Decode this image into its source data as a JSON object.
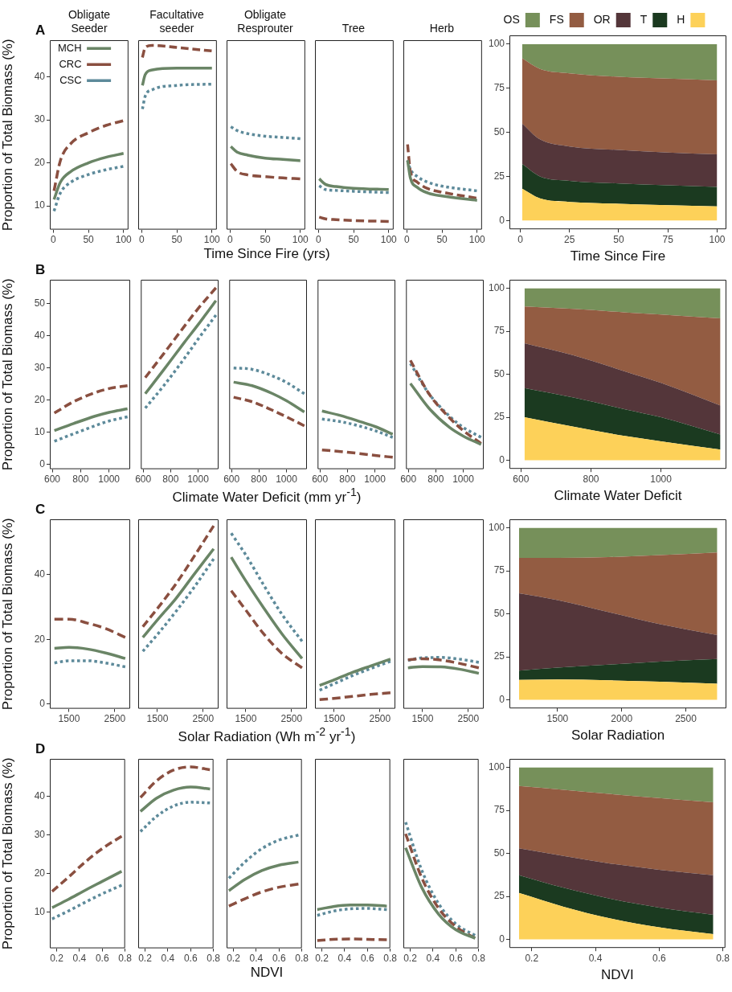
{
  "chart_data": [
    {
      "type": "line",
      "title": "Obligate Seeder",
      "ylabel": "Proportion of Total Biomass (%)",
      "annotations": [
        "A"
      ],
      "legend": "top left",
      "x": [
        1,
        10,
        25,
        50,
        75,
        100
      ],
      "xlim": [
        -5,
        107
      ],
      "xticks": [
        0,
        50,
        100
      ],
      "ylim": [
        4.5,
        48.5
      ],
      "yticks": [
        10,
        20,
        30,
        40
      ],
      "series": [
        {
          "name": "MCH",
          "color": "#6a8566",
          "line_style": "solid",
          "values": [
            11.5,
            15.5,
            18,
            20,
            21.3,
            22.2
          ]
        },
        {
          "name": "CRC",
          "color": "#8a4f40",
          "line_style": "dashed",
          "values": [
            13.5,
            20.5,
            24.5,
            27,
            28.7,
            29.8
          ]
        },
        {
          "name": "CSC",
          "color": "#5d8a9a",
          "line_style": "dotted",
          "values": [
            8.8,
            13,
            15.5,
            17.3,
            18.4,
            19.2
          ]
        }
      ]
    },
    {
      "type": "line",
      "title": "Facultative seeder",
      "tick_labels": "x",
      "x": [
        1,
        5,
        15,
        50,
        100
      ],
      "xlim": [
        -5,
        107
      ],
      "xticks": [
        0,
        50,
        100
      ],
      "ylim": [
        4.5,
        48.5
      ],
      "series": [
        {
          "color": "#6a8566",
          "line_style": "solid",
          "values": [
            38,
            40.5,
            41.6,
            42,
            42
          ]
        },
        {
          "color": "#8a4f40",
          "line_style": "dashed",
          "values": [
            44.5,
            46.8,
            47.3,
            46.8,
            46
          ]
        },
        {
          "color": "#5d8a9a",
          "line_style": "dotted",
          "values": [
            32.5,
            35.5,
            37,
            38,
            38.3
          ]
        }
      ]
    },
    {
      "type": "line",
      "title": "Obligate Resprouter",
      "xlabel": "Time Since Fire (yrs)",
      "tick_labels": "x",
      "x": [
        1,
        10,
        25,
        50,
        75,
        100
      ],
      "xlim": [
        -5,
        107
      ],
      "xticks": [
        0,
        50,
        100
      ],
      "ylim": [
        4.5,
        48.5
      ],
      "series": [
        {
          "color": "#6a8566",
          "line_style": "solid",
          "values": [
            23.8,
            22.5,
            21.8,
            21.1,
            20.8,
            20.5
          ]
        },
        {
          "color": "#8a4f40",
          "line_style": "dashed",
          "values": [
            19.8,
            18,
            17.2,
            16.8,
            16.5,
            16.3
          ]
        },
        {
          "color": "#5d8a9a",
          "line_style": "dotted",
          "values": [
            28.4,
            27.5,
            26.8,
            26.2,
            25.9,
            25.6
          ]
        }
      ]
    },
    {
      "type": "line",
      "title": "Tree",
      "tick_labels": "x",
      "x": [
        1,
        10,
        25,
        50,
        100
      ],
      "xlim": [
        -5,
        107
      ],
      "xticks": [
        0,
        50,
        100
      ],
      "ylim": [
        4.5,
        48.5
      ],
      "series": [
        {
          "color": "#6a8566",
          "line_style": "solid",
          "values": [
            16.3,
            15,
            14.5,
            14.1,
            13.8
          ]
        },
        {
          "color": "#8a4f40",
          "line_style": "dashed",
          "values": [
            7.4,
            7,
            6.8,
            6.6,
            6.4
          ]
        },
        {
          "color": "#5d8a9a",
          "line_style": "dotted",
          "values": [
            14.7,
            13.8,
            13.6,
            13.4,
            13.1
          ]
        }
      ]
    },
    {
      "type": "line",
      "title": "Herb",
      "tick_labels": "x",
      "x": [
        1,
        5,
        15,
        30,
        50,
        100
      ],
      "xlim": [
        -5,
        107
      ],
      "xticks": [
        0,
        50,
        100
      ],
      "ylim": [
        4.5,
        48.5
      ],
      "series": [
        {
          "color": "#6a8566",
          "line_style": "solid",
          "values": [
            20.6,
            16.5,
            14.3,
            13,
            12.3,
            11.3
          ]
        },
        {
          "color": "#8a4f40",
          "line_style": "dashed",
          "values": [
            24.3,
            18,
            15.5,
            14,
            13.2,
            11.8
          ]
        },
        {
          "color": "#5d8a9a",
          "line_style": "dotted",
          "values": [
            20.6,
            18.5,
            16.8,
            15.5,
            14.6,
            13.5
          ]
        }
      ]
    },
    {
      "type": "area",
      "stacked": true,
      "legend": "top",
      "xlabel": "Time Since Fire",
      "x": [
        1,
        10,
        25,
        50,
        75,
        100
      ],
      "xlim": [
        -5.5,
        104.7
      ],
      "xticks": [
        0,
        25,
        50,
        75,
        100
      ],
      "ylim": [
        -5,
        105
      ],
      "yticks": [
        0,
        25,
        50,
        75,
        100
      ],
      "series": [
        {
          "name": "H",
          "color": "#fdd159",
          "values": [
            18,
            12.5,
            10.5,
            9.5,
            8.7,
            8
          ]
        },
        {
          "name": "T",
          "color": "#1b3a20",
          "values": [
            14,
            12.5,
            12,
            11.5,
            11.3,
            11
          ]
        },
        {
          "name": "OR",
          "color": "#54363a",
          "values": [
            23,
            21,
            19.5,
            19,
            18.5,
            18.5
          ]
        },
        {
          "name": "FS",
          "color": "#935c42",
          "values": [
            37,
            40,
            41.5,
            41.5,
            42,
            42
          ]
        },
        {
          "name": "OS",
          "color": "#76905a",
          "values": [
            8,
            14,
            16.5,
            18.5,
            19.5,
            20.5
          ]
        }
      ]
    },
    {
      "type": "line",
      "ylabel": "Proportion of Total Biomass (%)",
      "annotations": [
        "B"
      ],
      "x": [
        615,
        750,
        900,
        1000,
        1130
      ],
      "xlim": [
        583,
        1149
      ],
      "xticks": [
        600,
        800,
        1000
      ],
      "ylim": [
        -1.5,
        57.5
      ],
      "yticks": [
        0,
        10,
        20,
        30,
        40,
        50
      ],
      "series": [
        {
          "color": "#6a8566",
          "line_style": "solid",
          "values": [
            10.5,
            12.7,
            15,
            16.2,
            17.3
          ]
        },
        {
          "color": "#8a4f40",
          "line_style": "dashed",
          "values": [
            16,
            19.5,
            22.3,
            23.6,
            24.5
          ]
        },
        {
          "color": "#5d8a9a",
          "line_style": "dotted",
          "values": [
            7.2,
            9.5,
            12,
            13.5,
            14.8
          ]
        }
      ]
    },
    {
      "type": "line",
      "tick_labels": "x",
      "x": [
        615,
        750,
        900,
        1000,
        1130
      ],
      "xlim": [
        583,
        1149
      ],
      "xticks": [
        600,
        800,
        1000
      ],
      "ylim": [
        -1.5,
        57.5
      ],
      "series": [
        {
          "color": "#6a8566",
          "line_style": "solid",
          "values": [
            22,
            29.5,
            38,
            43.5,
            51
          ]
        },
        {
          "color": "#8a4f40",
          "line_style": "dashed",
          "values": [
            27,
            34.5,
            43,
            48.5,
            55
          ]
        },
        {
          "color": "#5d8a9a",
          "line_style": "dotted",
          "values": [
            17.5,
            24.5,
            33,
            39,
            46.5
          ]
        }
      ]
    },
    {
      "type": "line",
      "xlabel": "Climate Water Deficit (mm yr$^{-1}$)",
      "tick_labels": "x",
      "x": [
        615,
        750,
        900,
        1000,
        1130
      ],
      "xlim": [
        583,
        1149
      ],
      "xticks": [
        600,
        800,
        1000
      ],
      "ylim": [
        -1.5,
        57.5
      ],
      "series": [
        {
          "color": "#6a8566",
          "line_style": "solid",
          "values": [
            25.6,
            24.5,
            22,
            19.8,
            16.3
          ]
        },
        {
          "color": "#8a4f40",
          "line_style": "dashed",
          "values": [
            20.9,
            19.5,
            16.8,
            14.8,
            12
          ]
        },
        {
          "color": "#5d8a9a",
          "line_style": "dotted",
          "values": [
            30,
            29.6,
            27.5,
            25.5,
            22
          ]
        }
      ]
    },
    {
      "type": "line",
      "tick_labels": "x",
      "x": [
        615,
        750,
        900,
        1000,
        1130
      ],
      "xlim": [
        583,
        1149
      ],
      "xticks": [
        600,
        800,
        1000
      ],
      "ylim": [
        -1.5,
        57.5
      ],
      "series": [
        {
          "color": "#6a8566",
          "line_style": "solid",
          "values": [
            16.6,
            15.2,
            13.2,
            11.8,
            9.4
          ]
        },
        {
          "color": "#8a4f40",
          "line_style": "dashed",
          "values": [
            4.5,
            4,
            3.3,
            2.8,
            2.2
          ]
        },
        {
          "color": "#5d8a9a",
          "line_style": "dotted",
          "values": [
            14.1,
            13.3,
            11.8,
            10.5,
            8.4
          ]
        }
      ]
    },
    {
      "type": "line",
      "tick_labels": "x",
      "x": [
        615,
        750,
        900,
        1000,
        1130
      ],
      "xlim": [
        583,
        1149
      ],
      "xticks": [
        600,
        800,
        1000
      ],
      "ylim": [
        -1.5,
        57.5
      ],
      "series": [
        {
          "color": "#6a8566",
          "line_style": "solid",
          "values": [
            25.2,
            17.5,
            11.5,
            8.8,
            6.2
          ]
        },
        {
          "color": "#8a4f40",
          "line_style": "dashed",
          "values": [
            32.4,
            22,
            14.5,
            10.5,
            6.5
          ]
        },
        {
          "color": "#5d8a9a",
          "line_style": "dotted",
          "values": [
            31.4,
            22,
            15,
            11.5,
            8.4
          ]
        }
      ]
    },
    {
      "type": "area",
      "stacked": true,
      "xlabel": "Climate Water Deficit",
      "x": [
        610,
        750,
        900,
        1000,
        1170
      ],
      "xlim": [
        567,
        1187
      ],
      "xticks": [
        600,
        800,
        1000
      ],
      "ylim": [
        -5,
        105
      ],
      "yticks": [
        0,
        25,
        50,
        75,
        100
      ],
      "series": [
        {
          "color": "#fdd159",
          "values": [
            25,
            19.5,
            14,
            11,
            6.2
          ]
        },
        {
          "color": "#1b3a20",
          "values": [
            17,
            17,
            15.5,
            14,
            8.8
          ]
        },
        {
          "color": "#54363a",
          "values": [
            26,
            24.5,
            22,
            20,
            16.8
          ]
        },
        {
          "color": "#935c42",
          "values": [
            21.5,
            27,
            34.5,
            39.8,
            50.7
          ]
        },
        {
          "color": "#76905a",
          "values": [
            10.5,
            12,
            14,
            15.2,
            17.5
          ]
        }
      ]
    },
    {
      "type": "line",
      "ylabel": "Proportion of Total Biomass (%)",
      "annotations": [
        "C"
      ],
      "x": [
        1180,
        1500,
        1900,
        2300,
        2730
      ],
      "xlim": [
        1079,
        2837
      ],
      "xticks": [
        1500,
        2500
      ],
      "ylim": [
        -1.4,
        57
      ],
      "yticks": [
        0,
        20,
        40
      ],
      "series": [
        {
          "color": "#6a8566",
          "line_style": "solid",
          "values": [
            17.2,
            17.5,
            17,
            15.8,
            14.1
          ]
        },
        {
          "color": "#8a4f40",
          "line_style": "dashed",
          "values": [
            26.2,
            26.2,
            25,
            23.3,
            20.6
          ]
        },
        {
          "color": "#5d8a9a",
          "line_style": "dotted",
          "values": [
            12.7,
            13.4,
            13.4,
            12.7,
            11.5
          ]
        }
      ]
    },
    {
      "type": "line",
      "tick_labels": "x",
      "x": [
        1180,
        1500,
        1900,
        2300,
        2730
      ],
      "xlim": [
        1079,
        2837
      ],
      "xticks": [
        1500,
        2500
      ],
      "ylim": [
        -1.4,
        57
      ],
      "series": [
        {
          "color": "#6a8566",
          "line_style": "solid",
          "values": [
            20.6,
            26,
            32.5,
            40,
            47.9
          ]
        },
        {
          "color": "#8a4f40",
          "line_style": "dashed",
          "values": [
            23.9,
            29.5,
            37,
            45.5,
            55
          ]
        },
        {
          "color": "#5d8a9a",
          "line_style": "dotted",
          "values": [
            16.3,
            21.5,
            28.5,
            36,
            44.8
          ]
        }
      ]
    },
    {
      "type": "line",
      "xlabel": "Solar Radiation (Wh m$^{-2}$ yr$^{-1}$)",
      "tick_labels": "x",
      "x": [
        1180,
        1500,
        1900,
        2300,
        2730
      ],
      "xlim": [
        1079,
        2837
      ],
      "xticks": [
        1500,
        2500
      ],
      "ylim": [
        -1.4,
        57
      ],
      "series": [
        {
          "color": "#6a8566",
          "line_style": "solid",
          "values": [
            45.3,
            38,
            29.5,
            21.5,
            14.1
          ]
        },
        {
          "color": "#8a4f40",
          "line_style": "dashed",
          "values": [
            35,
            29,
            21.5,
            15.5,
            11.2
          ]
        },
        {
          "color": "#5d8a9a",
          "line_style": "dotted",
          "values": [
            52.7,
            46,
            36.5,
            27.5,
            19.4
          ]
        }
      ]
    },
    {
      "type": "line",
      "tick_labels": "x",
      "x": [
        1180,
        1500,
        1900,
        2300,
        2730
      ],
      "xlim": [
        1079,
        2837
      ],
      "xticks": [
        1500,
        2500
      ],
      "ylim": [
        -1.4,
        57
      ],
      "series": [
        {
          "color": "#6a8566",
          "line_style": "solid",
          "values": [
            5.8,
            7.5,
            9.8,
            11.8,
            13.9
          ]
        },
        {
          "color": "#8a4f40",
          "line_style": "dashed",
          "values": [
            1.4,
            1.8,
            2.4,
            3,
            3.5
          ]
        },
        {
          "color": "#5d8a9a",
          "line_style": "dotted",
          "values": [
            4.3,
            6.3,
            8.8,
            11,
            13.2
          ]
        }
      ]
    },
    {
      "type": "line",
      "tick_labels": "x",
      "x": [
        1180,
        1500,
        1900,
        2300,
        2730
      ],
      "xlim": [
        1079,
        2837
      ],
      "xticks": [
        1500,
        2500
      ],
      "ylim": [
        -1.4,
        57
      ],
      "series": [
        {
          "color": "#6a8566",
          "line_style": "solid",
          "values": [
            11.2,
            11.6,
            11.5,
            10.8,
            9.5
          ]
        },
        {
          "color": "#8a4f40",
          "line_style": "dashed",
          "values": [
            13.7,
            14,
            13.6,
            12.6,
            11.2
          ]
        },
        {
          "color": "#5d8a9a",
          "line_style": "dotted",
          "values": [
            13.5,
            14.3,
            14.4,
            13.9,
            12.9
          ]
        }
      ]
    },
    {
      "type": "area",
      "stacked": true,
      "xlabel": "Solar Radiation",
      "x": [
        1200,
        1500,
        1900,
        2300,
        2745
      ],
      "xlim": [
        1125,
        2816
      ],
      "xticks": [
        1500,
        2000,
        2500
      ],
      "ylim": [
        -5,
        105
      ],
      "yticks": [
        0,
        25,
        50,
        75,
        100
      ],
      "series": [
        {
          "color": "#fdd159",
          "values": [
            11.6,
            11.8,
            11.3,
            10.5,
            9.4
          ]
        },
        {
          "color": "#1b3a20",
          "values": [
            5.4,
            6.9,
            9.2,
            11.7,
            14.3
          ]
        },
        {
          "color": "#54363a",
          "values": [
            45,
            39.3,
            30.5,
            21.8,
            14
          ]
        },
        {
          "color": "#935c42",
          "values": [
            20.5,
            24.5,
            32,
            40.2,
            48
          ]
        },
        {
          "color": "#76905a",
          "values": [
            17.5,
            17.5,
            17,
            15.8,
            14.3
          ]
        }
      ]
    },
    {
      "type": "line",
      "ylabel": "Proportion of Total Biomass (%)",
      "annotations": [
        "D"
      ],
      "x": [
        0.16,
        0.3,
        0.45,
        0.6,
        0.77
      ],
      "xlim": [
        0.14,
        0.8
      ],
      "xticks": [
        0.2,
        0.4,
        0.6,
        0.8
      ],
      "ylim": [
        0.7,
        49.7
      ],
      "yticks": [
        10,
        20,
        30,
        40
      ],
      "series": [
        {
          "color": "#6a8566",
          "line_style": "solid",
          "values": [
            11.2,
            13.3,
            15.7,
            18,
            20.6
          ]
        },
        {
          "color": "#8a4f40",
          "line_style": "dashed",
          "values": [
            15.4,
            19,
            23,
            26.5,
            29.7
          ]
        },
        {
          "color": "#5d8a9a",
          "line_style": "dotted",
          "values": [
            8.3,
            10.3,
            12.6,
            14.8,
            17
          ]
        }
      ]
    },
    {
      "type": "line",
      "tick_labels": "x",
      "x": [
        0.16,
        0.3,
        0.45,
        0.6,
        0.77
      ],
      "xlim": [
        0.14,
        0.8
      ],
      "xticks": [
        0.2,
        0.4,
        0.6,
        0.8
      ],
      "ylim": [
        0.7,
        49.7
      ],
      "series": [
        {
          "color": "#6a8566",
          "line_style": "solid",
          "values": [
            36.1,
            39.5,
            41.6,
            42.4,
            41.9
          ]
        },
        {
          "color": "#8a4f40",
          "line_style": "dashed",
          "values": [
            39.7,
            44,
            46.8,
            47.6,
            46.9
          ]
        },
        {
          "color": "#5d8a9a",
          "line_style": "dotted",
          "values": [
            30.9,
            34.8,
            37.5,
            38.5,
            38.3
          ]
        }
      ]
    },
    {
      "type": "line",
      "xlabel": "NDVI",
      "tick_labels": "x",
      "x": [
        0.16,
        0.3,
        0.45,
        0.6,
        0.77
      ],
      "xlim": [
        0.14,
        0.8
      ],
      "xticks": [
        0.2,
        0.4,
        0.6,
        0.8
      ],
      "ylim": [
        0.7,
        49.7
      ],
      "series": [
        {
          "color": "#6a8566",
          "line_style": "solid",
          "values": [
            15.6,
            18.5,
            20.8,
            22.2,
            23
          ]
        },
        {
          "color": "#8a4f40",
          "line_style": "dashed",
          "values": [
            11.6,
            13.5,
            15.3,
            16.5,
            17.3
          ]
        },
        {
          "color": "#5d8a9a",
          "line_style": "dotted",
          "values": [
            18.8,
            23,
            26.5,
            28.7,
            30
          ]
        }
      ]
    },
    {
      "type": "line",
      "tick_labels": "x",
      "x": [
        0.16,
        0.3,
        0.45,
        0.6,
        0.77
      ],
      "xlim": [
        0.14,
        0.8
      ],
      "xticks": [
        0.2,
        0.4,
        0.6,
        0.8
      ],
      "ylim": [
        0.7,
        49.7
      ],
      "series": [
        {
          "color": "#6a8566",
          "line_style": "solid",
          "values": [
            10.7,
            11.5,
            11.9,
            11.9,
            11.6
          ]
        },
        {
          "color": "#8a4f40",
          "line_style": "dashed",
          "values": [
            2.7,
            3,
            3.1,
            3,
            2.9
          ]
        },
        {
          "color": "#5d8a9a",
          "line_style": "dotted",
          "values": [
            9.2,
            10.3,
            10.9,
            11,
            10.7
          ]
        }
      ]
    },
    {
      "type": "line",
      "tick_labels": "x",
      "x": [
        0.16,
        0.3,
        0.45,
        0.6,
        0.77
      ],
      "xlim": [
        0.14,
        0.8
      ],
      "xticks": [
        0.2,
        0.4,
        0.6,
        0.8
      ],
      "ylim": [
        0.7,
        49.7
      ],
      "series": [
        {
          "color": "#6a8566",
          "line_style": "solid",
          "values": [
            26.7,
            16.5,
            9.5,
            5.5,
            3.3
          ]
        },
        {
          "color": "#8a4f40",
          "line_style": "dashed",
          "values": [
            30.3,
            19,
            11,
            6.3,
            3.3
          ]
        },
        {
          "color": "#5d8a9a",
          "line_style": "dotted",
          "values": [
            33.3,
            21,
            12.2,
            7,
            4
          ]
        }
      ]
    },
    {
      "type": "area",
      "stacked": true,
      "xlabel": "NDVI",
      "x": [
        0.16,
        0.3,
        0.45,
        0.6,
        0.77
      ],
      "xlim": [
        0.13,
        0.808
      ],
      "xticks": [
        0.2,
        0.4,
        0.6,
        0.8
      ],
      "ylim": [
        -5,
        105
      ],
      "yticks": [
        0,
        25,
        50,
        75,
        100
      ],
      "series": [
        {
          "color": "#fdd159",
          "values": [
            27,
            19,
            12,
            7,
            3
          ]
        },
        {
          "color": "#1b3a20",
          "values": [
            10.3,
            11,
            11.5,
            11.5,
            11.3
          ]
        },
        {
          "color": "#54363a",
          "values": [
            15.7,
            18.5,
            20.5,
            22,
            23
          ]
        },
        {
          "color": "#935c42",
          "values": [
            36.2,
            38.5,
            40.5,
            41.7,
            42.4
          ]
        },
        {
          "color": "#76905a",
          "values": [
            10.8,
            13,
            15.5,
            17.8,
            20.3
          ]
        }
      ]
    }
  ]
}
